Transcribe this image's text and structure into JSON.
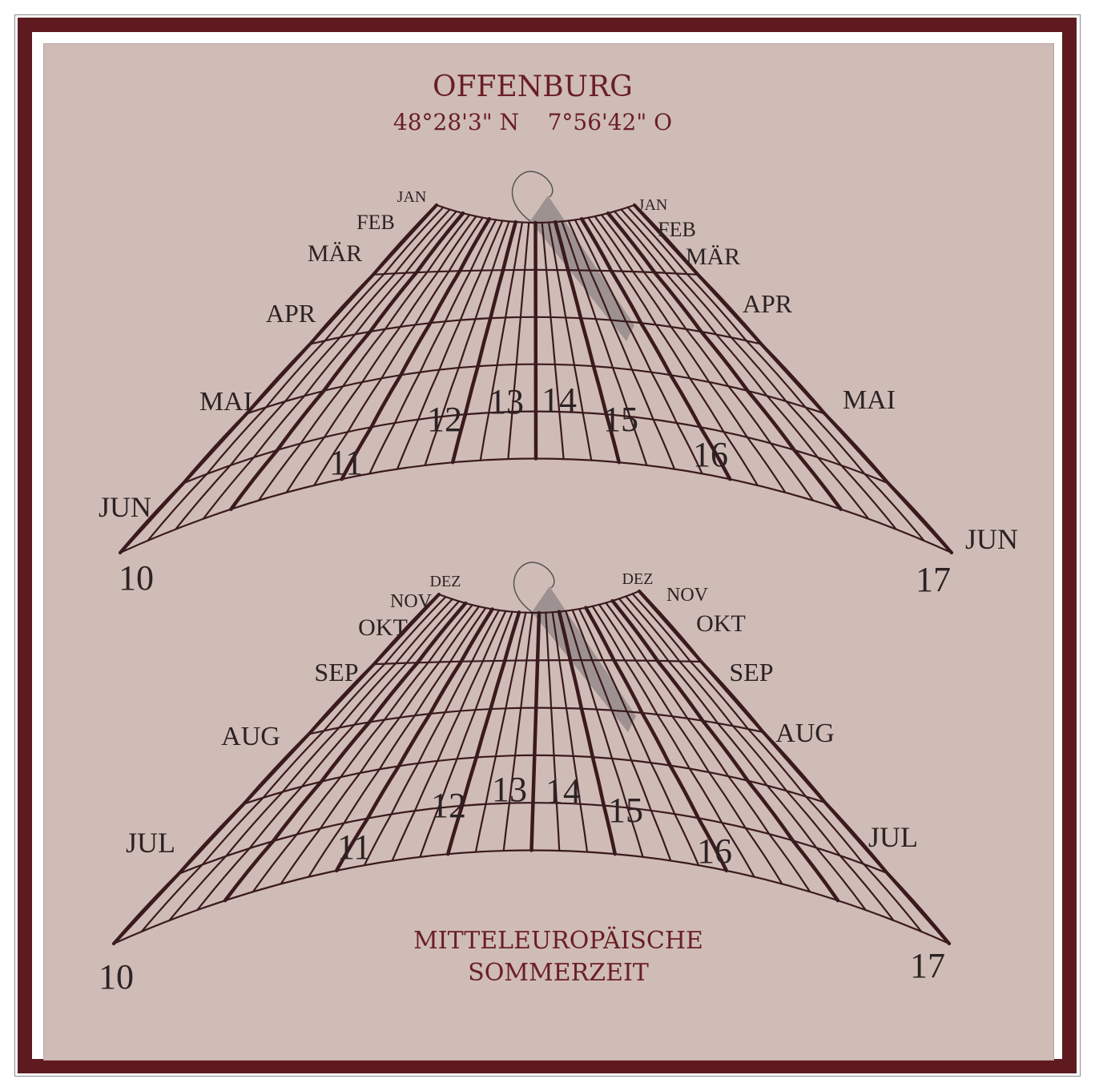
{
  "header": {
    "city": "OFFENBURG",
    "coordinates": "48°28'3\" N    7°56'42\" O"
  },
  "footer": {
    "line1": "MITTELEUROPÄISCHE",
    "line2": "SOMMERZEIT"
  },
  "top_dial": {
    "months_left": [
      "JAN",
      "FEB",
      "MÄR",
      "APR",
      "MAI",
      "JUN"
    ],
    "months_right": [
      "JAN",
      "FEB",
      "MÄR",
      "APR",
      "MAI",
      "JUN"
    ],
    "hours": [
      "10",
      "11",
      "12",
      "13",
      "14",
      "15",
      "16",
      "17"
    ]
  },
  "bottom_dial": {
    "months_left": [
      "DEZ",
      "NOV",
      "OKT",
      "SEP",
      "AUG",
      "JUL"
    ],
    "months_right": [
      "DEZ",
      "NOV",
      "OKT",
      "SEP",
      "AUG",
      "JUL"
    ],
    "hours": [
      "10",
      "11",
      "12",
      "13",
      "14",
      "15",
      "16",
      "17"
    ]
  },
  "colors": {
    "frame": "#5e1a1f",
    "panel": "#cfbcb6",
    "lines": "#3a1a1e",
    "title": "#6a1e24",
    "shadow": "#8c8484"
  }
}
